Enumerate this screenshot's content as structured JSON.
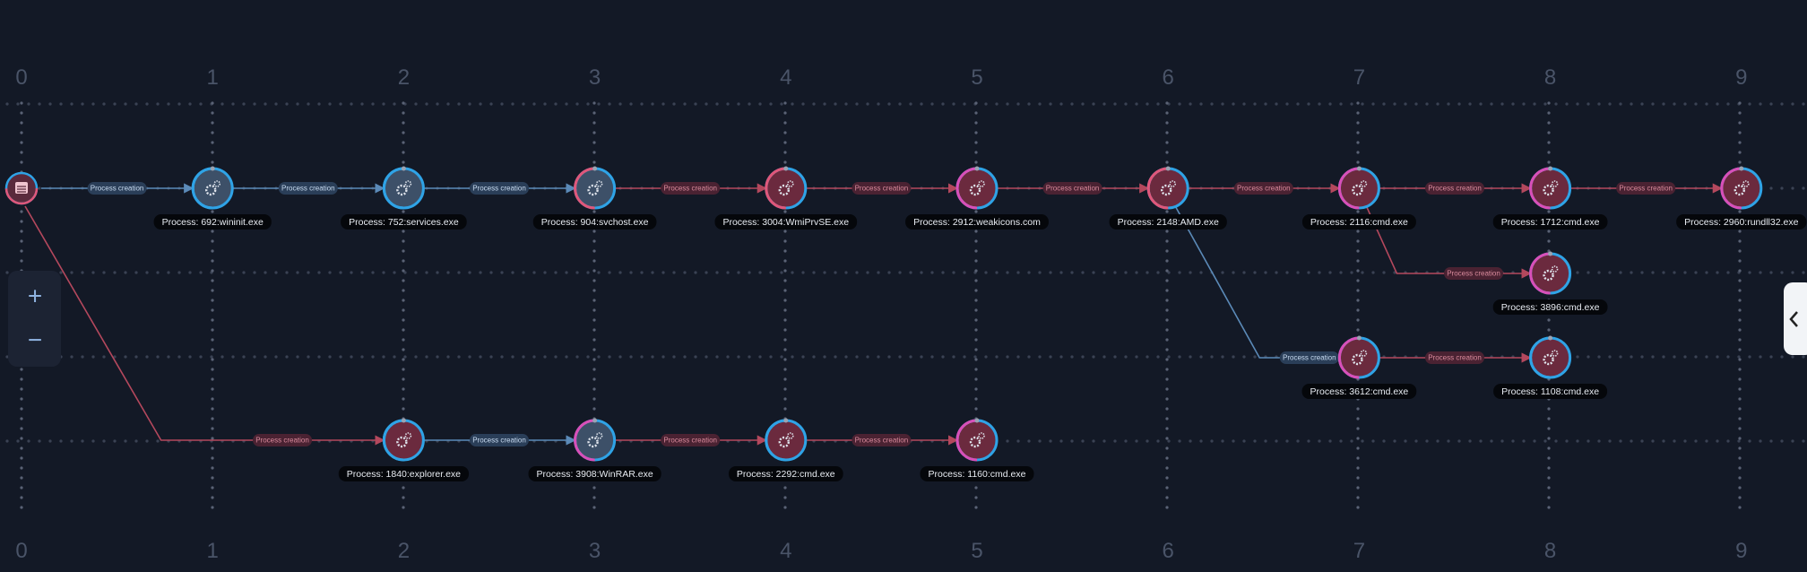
{
  "columns_top": [
    "0",
    "1",
    "2",
    "3",
    "4",
    "5",
    "6",
    "7",
    "8",
    "9"
  ],
  "columns_bottom": [
    "0",
    "1",
    "2",
    "3",
    "4",
    "5",
    "6",
    "7",
    "8",
    "9"
  ],
  "zoom": {
    "in": "+",
    "out": "−"
  },
  "nodes": [
    {
      "label": null,
      "color": "#e0577a",
      "fill": "#5a2a3c"
    },
    {
      "label": "Process: 692:wininit.exe",
      "color": "#2fa3e6",
      "fill": "#3d5068"
    },
    {
      "label": "Process: 752:services.exe",
      "color": "#2fa3e6",
      "fill": "#3d5068"
    },
    {
      "label": "Process: 904:svchost.exe",
      "color": "#e0577a",
      "fill": "#3d5068"
    },
    {
      "label": "Process: 3004:WmiPrvSE.exe",
      "color": "#e0577a",
      "fill": "#6b2a3e"
    },
    {
      "label": "Process: 2912:weakicons.com",
      "color": "#d94fb8",
      "fill": "#6b2a3e"
    },
    {
      "label": "Process: 2148:AMD.exe",
      "color": "#e0577a",
      "fill": "#6b2a3e"
    },
    {
      "label": "Process: 2116:cmd.exe",
      "color": "#d94fb8",
      "fill": "#6b2a3e"
    },
    {
      "label": "Process: 1712:cmd.exe",
      "color": "#d94fb8",
      "fill": "#6b2a3e"
    },
    {
      "label": "Process: 2960:rundll32.exe",
      "color": "#d94fb8",
      "fill": "#6b2a3e"
    },
    {
      "label": "Process: 3896:cmd.exe",
      "color": "#d94fb8",
      "fill": "#6b2a3e"
    },
    {
      "label": "Process: 3612:cmd.exe",
      "color": "#d94fb8",
      "fill": "#6b2a3e"
    },
    {
      "label": "Process: 1108:cmd.exe",
      "color": "#2fa3e6",
      "fill": "#6b2a3e"
    },
    {
      "label": "Process: 1840:explorer.exe",
      "color": "#2fa3e6",
      "fill": "#6b2a3e"
    },
    {
      "label": "Process: 3908:WinRAR.exe",
      "color": "#d94fb8",
      "fill": "#3d5068"
    },
    {
      "label": "Process: 2292:cmd.exe",
      "color": "#2fa3e6",
      "fill": "#6b2a3e"
    },
    {
      "label": "Process: 1160:cmd.exe",
      "color": "#d94fb8",
      "fill": "#6b2a3e"
    }
  ],
  "edges": [
    {
      "label": "Process creation",
      "color": "#5b8ab8"
    },
    {
      "label": "Process creation",
      "color": "#5b8ab8"
    },
    {
      "label": "Process creation",
      "color": "#5b8ab8"
    },
    {
      "label": "Process creation",
      "color": "#b4485d"
    },
    {
      "label": "Process creation",
      "color": "#b4485d"
    },
    {
      "label": "Process creation",
      "color": "#b4485d"
    },
    {
      "label": "Process creation",
      "color": "#b4485d"
    },
    {
      "label": "Process creation",
      "color": "#b4485d"
    },
    {
      "label": "Process creation",
      "color": "#b4485d"
    },
    {
      "label": "Process creation",
      "color": "#b4485d"
    },
    {
      "label": "Process creation",
      "color": "#5b8ab8"
    },
    {
      "label": "Process creation",
      "color": "#b4485d"
    },
    {
      "label": "Process creation",
      "color": "#b4485d"
    },
    {
      "label": "Process creation",
      "color": "#5b8ab8"
    },
    {
      "label": "Process creation",
      "color": "#b4485d"
    },
    {
      "label": "Process creation",
      "color": "#b4485d"
    }
  ]
}
